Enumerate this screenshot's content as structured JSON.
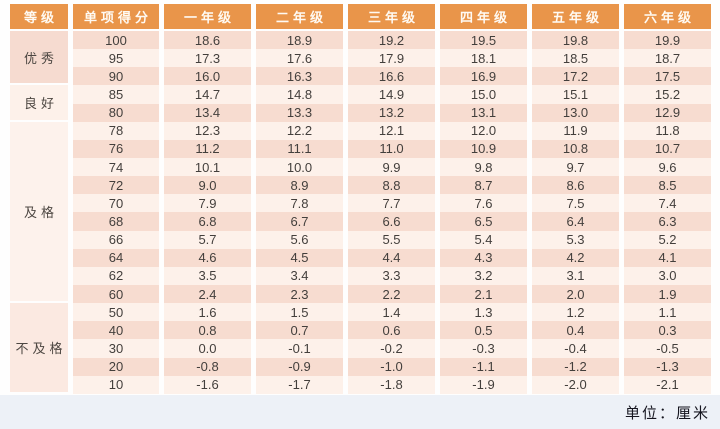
{
  "colors": {
    "page_bg": "#fefefe",
    "header_bg": "#e9954a",
    "header_text": "#fffaf3",
    "stripe_a": "#f7dcd0",
    "stripe_b": "#fdf1ea",
    "value_text": "#433f3c",
    "group_text": "#4d4742",
    "footer_bg": "#edf1f7",
    "footer_text": "#15151f",
    "group_bg": [
      "#f6dbd0",
      "#fdf1ea",
      "#fdf2ec",
      "#fbe9e1"
    ]
  },
  "chart_data": {
    "type": "table",
    "columns": [
      "等级",
      "单项得分",
      "一年级",
      "二年级",
      "三年级",
      "四年级",
      "五年级",
      "六年级"
    ],
    "row_groups": [
      {
        "label": "优秀",
        "rows": [
          {
            "score": 100,
            "values": [
              18.6,
              18.9,
              19.2,
              19.5,
              19.8,
              19.9
            ]
          },
          {
            "score": 95,
            "values": [
              17.3,
              17.6,
              17.9,
              18.1,
              18.5,
              18.7
            ]
          },
          {
            "score": 90,
            "values": [
              16.0,
              16.3,
              16.6,
              16.9,
              17.2,
              17.5
            ]
          }
        ]
      },
      {
        "label": "良好",
        "rows": [
          {
            "score": 85,
            "values": [
              14.7,
              14.8,
              14.9,
              15.0,
              15.1,
              15.2
            ]
          },
          {
            "score": 80,
            "values": [
              13.4,
              13.3,
              13.2,
              13.1,
              13.0,
              12.9
            ]
          }
        ]
      },
      {
        "label": "及格",
        "rows": [
          {
            "score": 78,
            "values": [
              12.3,
              12.2,
              12.1,
              12.0,
              11.9,
              11.8
            ]
          },
          {
            "score": 76,
            "values": [
              11.2,
              11.1,
              11.0,
              10.9,
              10.8,
              10.7
            ]
          },
          {
            "score": 74,
            "values": [
              10.1,
              10.0,
              9.9,
              9.8,
              9.7,
              9.6
            ]
          },
          {
            "score": 72,
            "values": [
              9.0,
              8.9,
              8.8,
              8.7,
              8.6,
              8.5
            ]
          },
          {
            "score": 70,
            "values": [
              7.9,
              7.8,
              7.7,
              7.6,
              7.5,
              7.4
            ]
          },
          {
            "score": 68,
            "values": [
              6.8,
              6.7,
              6.6,
              6.5,
              6.4,
              6.3
            ]
          },
          {
            "score": 66,
            "values": [
              5.7,
              5.6,
              5.5,
              5.4,
              5.3,
              5.2
            ]
          },
          {
            "score": 64,
            "values": [
              4.6,
              4.5,
              4.4,
              4.3,
              4.2,
              4.1
            ]
          },
          {
            "score": 62,
            "values": [
              3.5,
              3.4,
              3.3,
              3.2,
              3.1,
              3.0
            ]
          },
          {
            "score": 60,
            "values": [
              2.4,
              2.3,
              2.2,
              2.1,
              2.0,
              1.9
            ]
          }
        ]
      },
      {
        "label": "不及格",
        "rows": [
          {
            "score": 50,
            "values": [
              1.6,
              1.5,
              1.4,
              1.3,
              1.2,
              1.1
            ]
          },
          {
            "score": 40,
            "values": [
              0.8,
              0.7,
              0.6,
              0.5,
              0.4,
              0.3
            ]
          },
          {
            "score": 30,
            "values": [
              0.0,
              -0.1,
              -0.2,
              -0.3,
              -0.4,
              -0.5
            ]
          },
          {
            "score": 20,
            "values": [
              -0.8,
              -0.9,
              -1.0,
              -1.1,
              -1.2,
              -1.3
            ]
          },
          {
            "score": 10,
            "values": [
              -1.6,
              -1.7,
              -1.8,
              -1.9,
              -2.0,
              -2.1
            ]
          }
        ]
      }
    ],
    "footnote": "单位：厘米"
  }
}
